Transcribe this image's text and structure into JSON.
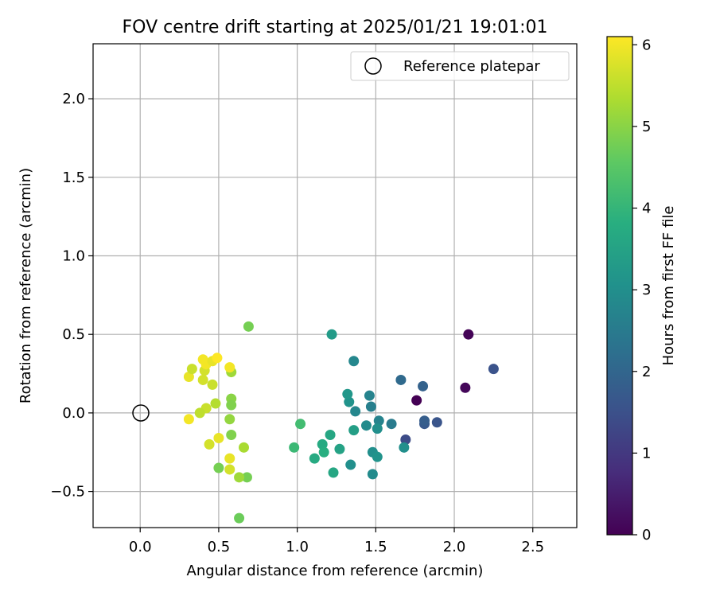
{
  "chart_data": {
    "type": "scatter",
    "title": "FOV centre drift starting at 2025/01/21 19:01:01",
    "xlabel": "Angular distance from reference (arcmin)",
    "ylabel": "Rotation from reference (arcmin)",
    "xlim": [
      -0.3,
      2.78
    ],
    "ylim": [
      -0.73,
      2.35
    ],
    "xticks": [
      0.0,
      0.5,
      1.0,
      1.5,
      2.0,
      2.5
    ],
    "xtick_labels": [
      "0.0",
      "0.5",
      "1.0",
      "1.5",
      "2.0",
      "2.5"
    ],
    "yticks": [
      -0.5,
      0.0,
      0.5,
      1.0,
      1.5,
      2.0
    ],
    "ytick_labels": [
      "−0.5",
      "0.0",
      "0.5",
      "1.0",
      "1.5",
      "2.0"
    ],
    "grid": true,
    "legend": {
      "position": "top-right",
      "entries": [
        "Reference platepar"
      ]
    },
    "reference_point": {
      "x": 0.0,
      "y": 0.0
    },
    "colorbar": {
      "label": "Hours from first FF file",
      "colormap": "viridis",
      "range": [
        0,
        6.1
      ],
      "ticks": [
        0,
        1,
        2,
        3,
        4,
        5,
        6
      ],
      "tick_labels": [
        "0",
        "1",
        "2",
        "3",
        "4",
        "5",
        "6"
      ]
    },
    "points": [
      {
        "x": 1.76,
        "y": 0.08,
        "t": 0.0
      },
      {
        "x": 2.07,
        "y": 0.16,
        "t": 0.1
      },
      {
        "x": 2.09,
        "y": 0.5,
        "t": 0.05
      },
      {
        "x": 2.25,
        "y": 0.28,
        "t": 1.55
      },
      {
        "x": 1.89,
        "y": -0.06,
        "t": 1.6
      },
      {
        "x": 1.81,
        "y": -0.07,
        "t": 1.7
      },
      {
        "x": 1.81,
        "y": -0.05,
        "t": 1.8
      },
      {
        "x": 1.69,
        "y": -0.17,
        "t": 1.4
      },
      {
        "x": 1.8,
        "y": 0.17,
        "t": 1.9
      },
      {
        "x": 1.66,
        "y": 0.21,
        "t": 2.1
      },
      {
        "x": 1.6,
        "y": -0.07,
        "t": 2.5
      },
      {
        "x": 1.68,
        "y": -0.22,
        "t": 3.0
      },
      {
        "x": 1.52,
        "y": -0.05,
        "t": 2.7
      },
      {
        "x": 1.51,
        "y": -0.1,
        "t": 3.0
      },
      {
        "x": 1.47,
        "y": 0.04,
        "t": 2.6
      },
      {
        "x": 1.46,
        "y": 0.11,
        "t": 2.7
      },
      {
        "x": 1.44,
        "y": -0.08,
        "t": 2.9
      },
      {
        "x": 1.37,
        "y": 0.01,
        "t": 2.8
      },
      {
        "x": 1.36,
        "y": 0.33,
        "t": 2.8
      },
      {
        "x": 1.33,
        "y": 0.07,
        "t": 3.1
      },
      {
        "x": 1.32,
        "y": 0.12,
        "t": 3.2
      },
      {
        "x": 1.36,
        "y": -0.11,
        "t": 3.4
      },
      {
        "x": 1.48,
        "y": -0.25,
        "t": 3.0
      },
      {
        "x": 1.51,
        "y": -0.28,
        "t": 3.1
      },
      {
        "x": 1.48,
        "y": -0.39,
        "t": 2.9
      },
      {
        "x": 1.34,
        "y": -0.33,
        "t": 3.0
      },
      {
        "x": 1.22,
        "y": 0.5,
        "t": 3.3
      },
      {
        "x": 1.21,
        "y": -0.14,
        "t": 3.6
      },
      {
        "x": 1.27,
        "y": -0.23,
        "t": 3.5
      },
      {
        "x": 1.16,
        "y": -0.2,
        "t": 3.7
      },
      {
        "x": 1.17,
        "y": -0.25,
        "t": 3.8
      },
      {
        "x": 1.11,
        "y": -0.29,
        "t": 3.7
      },
      {
        "x": 1.23,
        "y": -0.38,
        "t": 3.6
      },
      {
        "x": 1.02,
        "y": -0.07,
        "t": 4.2
      },
      {
        "x": 0.98,
        "y": -0.22,
        "t": 4.1
      },
      {
        "x": 0.69,
        "y": 0.55,
        "t": 4.8
      },
      {
        "x": 0.58,
        "y": 0.26,
        "t": 5.2
      },
      {
        "x": 0.58,
        "y": 0.09,
        "t": 5.0
      },
      {
        "x": 0.58,
        "y": 0.05,
        "t": 4.9
      },
      {
        "x": 0.57,
        "y": -0.04,
        "t": 5.1
      },
      {
        "x": 0.58,
        "y": -0.14,
        "t": 4.9
      },
      {
        "x": 0.66,
        "y": -0.22,
        "t": 5.3
      },
      {
        "x": 0.68,
        "y": -0.41,
        "t": 4.8
      },
      {
        "x": 0.63,
        "y": -0.41,
        "t": 5.2
      },
      {
        "x": 0.5,
        "y": -0.35,
        "t": 4.8
      },
      {
        "x": 0.63,
        "y": -0.67,
        "t": 4.7
      },
      {
        "x": 0.57,
        "y": -0.36,
        "t": 5.7
      },
      {
        "x": 0.57,
        "y": -0.29,
        "t": 5.9
      },
      {
        "x": 0.5,
        "y": -0.16,
        "t": 5.9
      },
      {
        "x": 0.44,
        "y": -0.2,
        "t": 5.7
      },
      {
        "x": 0.31,
        "y": -0.04,
        "t": 6.0
      },
      {
        "x": 0.42,
        "y": 0.03,
        "t": 5.6
      },
      {
        "x": 0.38,
        "y": 0.0,
        "t": 5.5
      },
      {
        "x": 0.48,
        "y": 0.06,
        "t": 5.4
      },
      {
        "x": 0.46,
        "y": 0.18,
        "t": 5.6
      },
      {
        "x": 0.4,
        "y": 0.21,
        "t": 5.7
      },
      {
        "x": 0.31,
        "y": 0.23,
        "t": 5.9
      },
      {
        "x": 0.33,
        "y": 0.28,
        "t": 5.6
      },
      {
        "x": 0.41,
        "y": 0.27,
        "t": 5.7
      },
      {
        "x": 0.42,
        "y": 0.31,
        "t": 6.0
      },
      {
        "x": 0.4,
        "y": 0.34,
        "t": 6.0
      },
      {
        "x": 0.46,
        "y": 0.33,
        "t": 5.9
      },
      {
        "x": 0.49,
        "y": 0.35,
        "t": 6.1
      },
      {
        "x": 0.57,
        "y": 0.29,
        "t": 6.0
      }
    ]
  }
}
